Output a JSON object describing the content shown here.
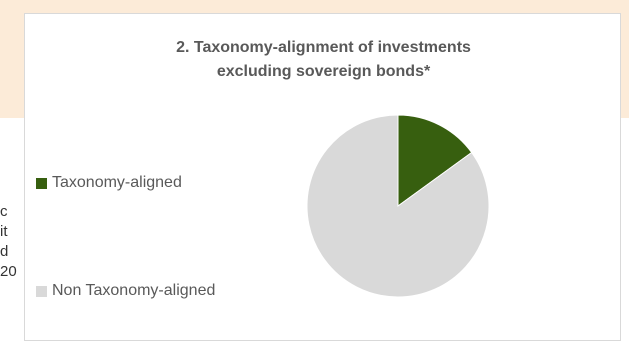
{
  "background": {
    "clipped_lines": [
      "c",
      "it",
      "d",
      "20"
    ]
  },
  "chart_data": {
    "type": "pie",
    "title_lines": [
      "2. Taxonomy-alignment of investments",
      "excluding sovereign bonds*"
    ],
    "legend_position": "left",
    "slices": [
      {
        "label": "Taxonomy-aligned",
        "value": 15,
        "color": "#375f0f"
      },
      {
        "label": "Non Taxonomy-aligned",
        "value": 85,
        "color": "#d9d9d9"
      }
    ]
  },
  "colors": {
    "panel_bg": "#fcebd8",
    "text": "#595959"
  }
}
